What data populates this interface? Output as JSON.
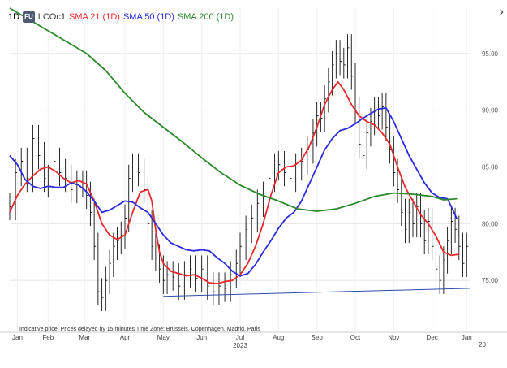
{
  "legend": {
    "interval": "1D",
    "badge": "FU",
    "symbol": "LCOc1",
    "sma21": "SMA 21 (1D)",
    "sma50": "SMA 50 (1D)",
    "sma200": "SMA 200 (1D)"
  },
  "footnote": "Indicative price. Prices delayed by 15 minutes   Time Zone: Brussels, Copenhagen, Madrid, Paris",
  "chevron_icon": "chevron-right-icon",
  "colors": {
    "sma21": "#e8292b",
    "sma50": "#2a2ae0",
    "sma200": "#2a8a2a",
    "trendline": "#2b4fa8",
    "price": "#111111"
  },
  "chart_data": {
    "type": "line",
    "x_range": [
      0,
      12
    ],
    "ylim": [
      70.5,
      99
    ],
    "y_ticks": [
      "95.00",
      "90.00",
      "85.00",
      "80.00",
      "75.00"
    ],
    "y_tick_values": [
      95,
      90,
      85,
      80,
      75
    ],
    "x_ticks": [
      {
        "label": "Jan",
        "x": 0.2
      },
      {
        "label": "Feb",
        "x": 1.0
      },
      {
        "label": "Mar",
        "x": 1.95
      },
      {
        "label": "Apr",
        "x": 3.0
      },
      {
        "label": "May",
        "x": 4.0
      },
      {
        "label": "Jun",
        "x": 5.0
      },
      {
        "label": "Jul",
        "x": 6.0
      },
      {
        "label": "Aug",
        "x": 7.0
      },
      {
        "label": "Sep",
        "x": 8.0
      },
      {
        "label": "Oct",
        "x": 9.0
      },
      {
        "label": "Nov",
        "x": 10.0
      },
      {
        "label": "Dec",
        "x": 11.0
      },
      {
        "label": "Jan",
        "x": 11.9
      }
    ],
    "year_label": {
      "label": "2023",
      "x": 6.0
    },
    "edge_label": "20",
    "series": [
      {
        "name": "LCOc1",
        "values": [
          [
            0,
            81.5
          ],
          [
            0.15,
            84.5
          ],
          [
            0.3,
            85.5
          ],
          [
            0.45,
            84
          ],
          [
            0.6,
            87.5
          ],
          [
            0.75,
            86
          ],
          [
            0.9,
            84
          ],
          [
            1.0,
            83.5
          ],
          [
            1.15,
            85.5
          ],
          [
            1.3,
            84.5
          ],
          [
            1.45,
            84
          ],
          [
            1.6,
            83
          ],
          [
            1.75,
            83.5
          ],
          [
            1.9,
            83.5
          ],
          [
            2.0,
            82.5
          ],
          [
            2.1,
            81
          ],
          [
            2.2,
            78
          ],
          [
            2.3,
            74
          ],
          [
            2.4,
            73.5
          ],
          [
            2.5,
            75
          ],
          [
            2.6,
            76.5
          ],
          [
            2.7,
            78
          ],
          [
            2.8,
            78.5
          ],
          [
            2.9,
            79
          ],
          [
            3.0,
            80.5
          ],
          [
            3.1,
            84
          ],
          [
            3.2,
            85
          ],
          [
            3.35,
            84.5
          ],
          [
            3.5,
            83
          ],
          [
            3.6,
            80
          ],
          [
            3.7,
            78
          ],
          [
            3.8,
            77
          ],
          [
            3.9,
            76
          ],
          [
            4.0,
            75
          ],
          [
            4.1,
            75.5
          ],
          [
            4.25,
            75.3
          ],
          [
            4.4,
            74.5
          ],
          [
            4.55,
            75.5
          ],
          [
            4.7,
            76
          ],
          [
            4.85,
            75.2
          ],
          [
            5.0,
            76
          ],
          [
            5.15,
            74.5
          ],
          [
            5.3,
            74
          ],
          [
            5.45,
            74.5
          ],
          [
            5.6,
            74.3
          ],
          [
            5.75,
            75.5
          ],
          [
            5.9,
            76.5
          ],
          [
            6.0,
            78
          ],
          [
            6.15,
            79.5
          ],
          [
            6.3,
            80.5
          ],
          [
            6.45,
            81.8
          ],
          [
            6.6,
            82.5
          ],
          [
            6.75,
            84
          ],
          [
            6.9,
            85
          ],
          [
            7.0,
            85.2
          ],
          [
            7.15,
            84.5
          ],
          [
            7.3,
            84
          ],
          [
            7.45,
            85
          ],
          [
            7.6,
            85.5
          ],
          [
            7.75,
            86.5
          ],
          [
            7.9,
            88
          ],
          [
            8.0,
            89.5
          ],
          [
            8.1,
            89.3
          ],
          [
            8.2,
            91
          ],
          [
            8.3,
            92.5
          ],
          [
            8.4,
            94
          ],
          [
            8.5,
            95
          ],
          [
            8.6,
            94.3
          ],
          [
            8.7,
            94
          ],
          [
            8.8,
            95.5
          ],
          [
            8.9,
            93
          ],
          [
            9.0,
            90
          ],
          [
            9.1,
            87
          ],
          [
            9.2,
            86
          ],
          [
            9.3,
            88
          ],
          [
            9.4,
            89
          ],
          [
            9.5,
            90
          ],
          [
            9.6,
            89.5
          ],
          [
            9.7,
            90.3
          ],
          [
            9.8,
            88.5
          ],
          [
            9.9,
            86.5
          ],
          [
            10.0,
            84.5
          ],
          [
            10.1,
            83
          ],
          [
            10.2,
            81
          ],
          [
            10.3,
            79.5
          ],
          [
            10.4,
            81
          ],
          [
            10.5,
            80
          ],
          [
            10.6,
            81.5
          ],
          [
            10.7,
            80
          ],
          [
            10.8,
            78.5
          ],
          [
            10.9,
            80.2
          ],
          [
            11.0,
            78
          ],
          [
            11.1,
            76
          ],
          [
            11.2,
            75
          ],
          [
            11.3,
            76.8
          ],
          [
            11.4,
            78.5
          ],
          [
            11.5,
            80.2
          ],
          [
            11.6,
            79.5
          ],
          [
            11.7,
            78
          ],
          [
            11.8,
            76.5
          ],
          [
            11.9,
            78
          ]
        ]
      },
      {
        "name": "SMA 21 (1D)",
        "values": [
          [
            0,
            81
          ],
          [
            0.2,
            82.5
          ],
          [
            0.4,
            83.5
          ],
          [
            0.6,
            84.2
          ],
          [
            0.8,
            84.8
          ],
          [
            1.0,
            85
          ],
          [
            1.2,
            84.6
          ],
          [
            1.4,
            84
          ],
          [
            1.6,
            83.6
          ],
          [
            1.8,
            83.8
          ],
          [
            2.0,
            83.5
          ],
          [
            2.2,
            82
          ],
          [
            2.4,
            80
          ],
          [
            2.6,
            79
          ],
          [
            2.8,
            78.6
          ],
          [
            3.0,
            79
          ],
          [
            3.2,
            81
          ],
          [
            3.4,
            82.8
          ],
          [
            3.6,
            83
          ],
          [
            3.7,
            82
          ],
          [
            3.8,
            79.5
          ],
          [
            3.9,
            77.5
          ],
          [
            4.0,
            76.5
          ],
          [
            4.2,
            75.8
          ],
          [
            4.4,
            75.6
          ],
          [
            4.6,
            75.4
          ],
          [
            4.8,
            75.5
          ],
          [
            5.0,
            75.2
          ],
          [
            5.2,
            74.8
          ],
          [
            5.4,
            74.7
          ],
          [
            5.6,
            74.9
          ],
          [
            5.8,
            75
          ],
          [
            6.0,
            75.5
          ],
          [
            6.2,
            76.5
          ],
          [
            6.4,
            78
          ],
          [
            6.6,
            80
          ],
          [
            6.8,
            82.5
          ],
          [
            7.0,
            84.5
          ],
          [
            7.2,
            85
          ],
          [
            7.4,
            85.1
          ],
          [
            7.6,
            85.6
          ],
          [
            7.8,
            86.8
          ],
          [
            8.0,
            88.5
          ],
          [
            8.2,
            90.5
          ],
          [
            8.4,
            91.8
          ],
          [
            8.55,
            92.5
          ],
          [
            8.7,
            91.8
          ],
          [
            8.9,
            90.5
          ],
          [
            9.1,
            89.5
          ],
          [
            9.3,
            89
          ],
          [
            9.5,
            88.7
          ],
          [
            9.7,
            88
          ],
          [
            9.9,
            87
          ],
          [
            10.1,
            85
          ],
          [
            10.3,
            83.2
          ],
          [
            10.5,
            82
          ],
          [
            10.7,
            80.8
          ],
          [
            10.9,
            80
          ],
          [
            11.1,
            78.9
          ],
          [
            11.3,
            77.5
          ],
          [
            11.5,
            77.2
          ],
          [
            11.7,
            77.3
          ]
        ]
      },
      {
        "name": "SMA 50 (1D)",
        "values": [
          [
            0,
            86
          ],
          [
            0.2,
            85.2
          ],
          [
            0.4,
            83.9
          ],
          [
            0.6,
            83.3
          ],
          [
            0.8,
            83.1
          ],
          [
            1.0,
            83.3
          ],
          [
            1.2,
            83.2
          ],
          [
            1.4,
            83.2
          ],
          [
            1.6,
            83.6
          ],
          [
            1.8,
            83.4
          ],
          [
            2.0,
            82.8
          ],
          [
            2.2,
            82
          ],
          [
            2.4,
            81
          ],
          [
            2.6,
            81.2
          ],
          [
            2.8,
            81.6
          ],
          [
            3.0,
            82
          ],
          [
            3.2,
            81.9
          ],
          [
            3.4,
            81.4
          ],
          [
            3.6,
            81
          ],
          [
            3.8,
            80
          ],
          [
            4.0,
            79
          ],
          [
            4.2,
            78.3
          ],
          [
            4.4,
            78
          ],
          [
            4.6,
            77.7
          ],
          [
            4.8,
            77.6
          ],
          [
            5.0,
            77.7
          ],
          [
            5.2,
            77.6
          ],
          [
            5.4,
            77
          ],
          [
            5.6,
            76.5
          ],
          [
            5.8,
            75.8
          ],
          [
            6.0,
            75.4
          ],
          [
            6.2,
            75.6
          ],
          [
            6.4,
            76.4
          ],
          [
            6.6,
            77.5
          ],
          [
            6.8,
            78.5
          ],
          [
            7.0,
            79.6
          ],
          [
            7.2,
            80.5
          ],
          [
            7.4,
            81
          ],
          [
            7.6,
            82
          ],
          [
            7.8,
            83.5
          ],
          [
            8.0,
            85
          ],
          [
            8.2,
            86.5
          ],
          [
            8.4,
            87.5
          ],
          [
            8.6,
            88.2
          ],
          [
            8.8,
            88.4
          ],
          [
            9.0,
            88.8
          ],
          [
            9.2,
            89.3
          ],
          [
            9.4,
            89.7
          ],
          [
            9.6,
            90.1
          ],
          [
            9.8,
            90.2
          ],
          [
            10.0,
            89
          ],
          [
            10.2,
            87.5
          ],
          [
            10.4,
            86
          ],
          [
            10.6,
            84.8
          ],
          [
            10.8,
            83.6
          ],
          [
            11.0,
            82.7
          ],
          [
            11.2,
            82.3
          ],
          [
            11.4,
            82.2
          ],
          [
            11.5,
            81.5
          ],
          [
            11.65,
            80.4
          ]
        ]
      },
      {
        "name": "SMA 200 (1D)",
        "values": [
          [
            0,
            99
          ],
          [
            0.5,
            98
          ],
          [
            1.0,
            97
          ],
          [
            1.5,
            96
          ],
          [
            2.0,
            95
          ],
          [
            2.5,
            93.5
          ],
          [
            3.0,
            91.5
          ],
          [
            3.5,
            89.8
          ],
          [
            4.0,
            88.5
          ],
          [
            4.5,
            87.2
          ],
          [
            5.0,
            85.8
          ],
          [
            5.5,
            84.5
          ],
          [
            6.0,
            83.4
          ],
          [
            6.5,
            82.6
          ],
          [
            7.0,
            82
          ],
          [
            7.5,
            81.3
          ],
          [
            8.0,
            81.1
          ],
          [
            8.5,
            81.3
          ],
          [
            9.0,
            81.8
          ],
          [
            9.5,
            82.4
          ],
          [
            10.0,
            82.7
          ],
          [
            10.5,
            82.6
          ],
          [
            11.0,
            82.4
          ],
          [
            11.3,
            82.1
          ],
          [
            11.65,
            82.2
          ]
        ]
      },
      {
        "name": "trendline",
        "values": [
          [
            4.0,
            73.6
          ],
          [
            12.0,
            74.3
          ]
        ]
      }
    ]
  }
}
